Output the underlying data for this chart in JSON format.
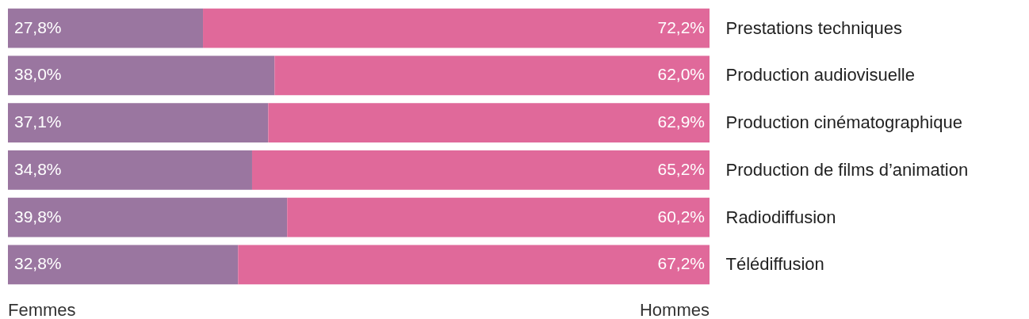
{
  "chart_data": {
    "type": "bar",
    "orientation": "horizontal",
    "stacked": true,
    "categories": [
      "Prestations techniques",
      "Production audiovisuelle",
      "Production cinématographique",
      "Production de films d’animation",
      "Radiodiffusion",
      "Télédiffusion"
    ],
    "series": [
      {
        "name": "Femmes",
        "color": "#9a76a0",
        "values": [
          27.8,
          38.0,
          37.1,
          34.8,
          39.8,
          32.8
        ],
        "value_labels": [
          "27,8%",
          "38,0%",
          "37,1%",
          "34,8%",
          "39,8%",
          "32,8%"
        ]
      },
      {
        "name": "Hommes",
        "color": "#e0699a",
        "values": [
          72.2,
          62.0,
          62.9,
          65.2,
          60.2,
          67.2
        ],
        "value_labels": [
          "72,2%",
          "62,0%",
          "62,9%",
          "65,2%",
          "60,2%",
          "67,2%"
        ]
      }
    ],
    "xlim": [
      0,
      100
    ],
    "tick_labels": "y",
    "legend": "bottom"
  }
}
